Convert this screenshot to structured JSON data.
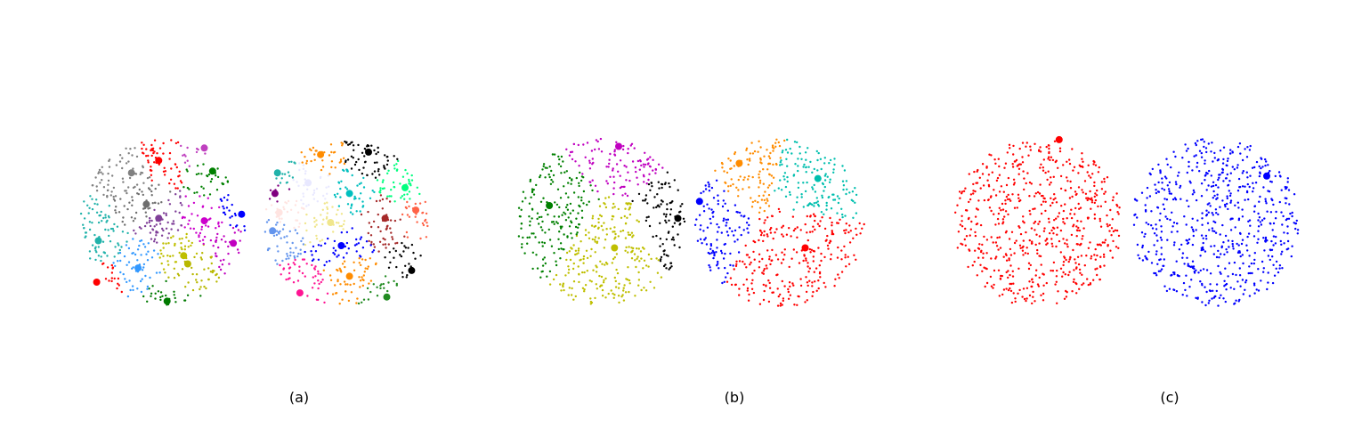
{
  "chart_data": [
    {
      "type": "scatter",
      "caption": "(a)",
      "point_count_per_disc": 620,
      "discs": [
        {
          "name": "left",
          "clusters": [
            {
              "color": "#808080",
              "center": [
                -0.38,
                0.6
              ]
            },
            {
              "color": "#ff0000",
              "center": [
                -0.05,
                0.75
              ]
            },
            {
              "color": "#bf40bf",
              "center": [
                0.5,
                0.9
              ]
            },
            {
              "color": "#008000",
              "center": [
                0.6,
                0.62
              ]
            },
            {
              "color": "#6e6e6e",
              "center": [
                -0.2,
                0.22
              ]
            },
            {
              "color": "#7f3f98",
              "center": [
                -0.05,
                0.05
              ]
            },
            {
              "color": "#0000ff",
              "center": [
                0.95,
                0.1
              ]
            },
            {
              "color": "#cc00cc",
              "center": [
                0.5,
                0.02
              ]
            },
            {
              "color": "#20b2aa",
              "center": [
                -0.78,
                -0.22
              ]
            },
            {
              "color": "#c000c0",
              "center": [
                0.85,
                -0.25
              ]
            },
            {
              "color": "#bfbf00",
              "center": [
                0.25,
                -0.4
              ]
            },
            {
              "color": "#b8b800",
              "center": [
                0.3,
                -0.5
              ]
            },
            {
              "color": "#3399ff",
              "center": [
                -0.3,
                -0.55
              ]
            },
            {
              "color": "#ff0000",
              "center": [
                -0.8,
                -0.72
              ]
            },
            {
              "color": "#007a00",
              "center": [
                0.05,
                -0.95
              ]
            }
          ]
        },
        {
          "name": "right",
          "clusters": [
            {
              "color": "#ff8c00",
              "center": [
                -0.3,
                0.82
              ]
            },
            {
              "color": "#000000",
              "center": [
                0.28,
                0.85
              ]
            },
            {
              "color": "#20b2aa",
              "center": [
                -0.82,
                0.6
              ]
            },
            {
              "color": "#e8e8ff",
              "center": [
                -0.45,
                0.48
              ]
            },
            {
              "color": "#00ff7f",
              "center": [
                0.72,
                0.42
              ]
            },
            {
              "color": "#00bfbf",
              "center": [
                0.05,
                0.35
              ]
            },
            {
              "color": "#800080",
              "center": [
                -0.85,
                0.35
              ]
            },
            {
              "color": "#ffe4e1",
              "center": [
                -0.8,
                0.12
              ]
            },
            {
              "color": "#ff6347",
              "center": [
                0.85,
                0.15
              ]
            },
            {
              "color": "#f0e68c",
              "center": [
                -0.18,
                0.0
              ]
            },
            {
              "color": "#a52a2a",
              "center": [
                0.48,
                0.05
              ]
            },
            {
              "color": "#6495ed",
              "center": [
                -0.88,
                -0.1
              ]
            },
            {
              "color": "#0000ff",
              "center": [
                -0.05,
                -0.28
              ]
            },
            {
              "color": "#000000",
              "center": [
                0.8,
                -0.58
              ]
            },
            {
              "color": "#ff8c00",
              "center": [
                0.05,
                -0.65
              ]
            },
            {
              "color": "#ff1493",
              "center": [
                -0.55,
                -0.85
              ]
            },
            {
              "color": "#228b22",
              "center": [
                0.5,
                -0.9
              ]
            }
          ]
        }
      ]
    },
    {
      "type": "scatter",
      "caption": "(b)",
      "point_count_per_disc": 620,
      "discs": [
        {
          "name": "left",
          "clusters": [
            {
              "color": "#008000",
              "center": [
                -0.62,
                0.2
              ]
            },
            {
              "color": "#c000c0",
              "center": [
                0.2,
                0.9
              ]
            },
            {
              "color": "#000000",
              "center": [
                0.9,
                0.05
              ]
            },
            {
              "color": "#bfbf00",
              "center": [
                0.15,
                -0.3
              ]
            }
          ]
        },
        {
          "name": "right",
          "clusters": [
            {
              "color": "#ff8c00",
              "center": [
                -0.48,
                0.7
              ]
            },
            {
              "color": "#00bfae",
              "center": [
                0.45,
                0.52
              ]
            },
            {
              "color": "#0000ff",
              "center": [
                -0.95,
                0.25
              ]
            },
            {
              "color": "#ff0000",
              "center": [
                0.3,
                -0.3
              ]
            }
          ]
        }
      ]
    },
    {
      "type": "scatter",
      "caption": "(c)",
      "point_count_per_disc": 620,
      "discs": [
        {
          "name": "left",
          "clusters": [
            {
              "color": "#ff0000",
              "center": [
                0.25,
                0.98
              ]
            }
          ]
        },
        {
          "name": "right",
          "clusters": [
            {
              "color": "#0000ff",
              "center": [
                0.6,
                0.55
              ]
            }
          ]
        }
      ]
    }
  ]
}
